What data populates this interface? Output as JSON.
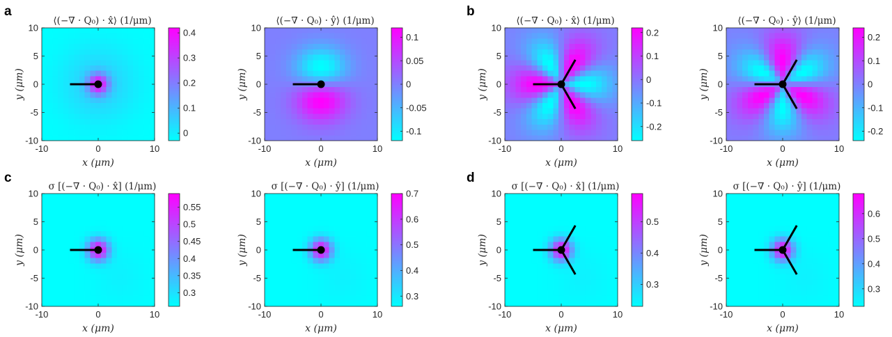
{
  "figure": {
    "panel_letters": [
      "a",
      "b",
      "c",
      "d"
    ],
    "colormap": [
      "#00ffff",
      "#ff00ff"
    ]
  },
  "chart_data": [
    {
      "type": "heatmap",
      "panel": "a",
      "field": "gauss",
      "defect": "plus_half",
      "title": "⟨(−∇ · Q₀) · x̂⟩ (1/μm)",
      "xlabel": "x (μm)",
      "ylabel": "y (μm)",
      "xlim": [
        -10,
        10
      ],
      "ylim": [
        -10,
        10
      ],
      "xticks": [
        -10,
        0,
        10
      ],
      "yticks": [
        -10,
        -5,
        0,
        5,
        10
      ],
      "clim": [
        -0.03,
        0.42
      ],
      "colorbar_ticks": [
        0,
        0.1,
        0.2,
        0.3,
        0.4
      ],
      "colorbar_tick_labels": [
        "0",
        "0.1",
        "0.2",
        "0.3",
        "0.4"
      ]
    },
    {
      "type": "heatmap",
      "panel": "a",
      "field": "dipole",
      "defect": "plus_half",
      "title": "⟨(−∇ · Q₀) · ŷ⟩ (1/μm)",
      "xlabel": "x (μm)",
      "ylabel": "y (μm)",
      "xlim": [
        -10,
        10
      ],
      "ylim": [
        -10,
        10
      ],
      "xticks": [
        -10,
        0,
        10
      ],
      "yticks": [
        -10,
        -5,
        0,
        5,
        10
      ],
      "clim": [
        -0.12,
        0.12
      ],
      "colorbar_ticks": [
        -0.1,
        -0.05,
        0,
        0.05,
        0.1
      ],
      "colorbar_tick_labels": [
        "-0.1",
        "-0.05",
        "0",
        "0.05",
        "0.1"
      ]
    },
    {
      "type": "heatmap",
      "panel": "b",
      "field": "three_lobe_x",
      "defect": "minus_half",
      "title": "⟨(−∇ · Q₀) · x̂⟩ (1/μm)",
      "xlabel": "x (μm)",
      "ylabel": "y (μm)",
      "xlim": [
        -10,
        10
      ],
      "ylim": [
        -10,
        10
      ],
      "xticks": [
        -10,
        0,
        10
      ],
      "yticks": [
        -10,
        -5,
        0,
        5,
        10
      ],
      "clim": [
        -0.26,
        0.22
      ],
      "colorbar_ticks": [
        -0.2,
        -0.1,
        0,
        0.1,
        0.2
      ],
      "colorbar_tick_labels": [
        "-0.2",
        "-0.1",
        "0",
        "0.1",
        "0.2"
      ]
    },
    {
      "type": "heatmap",
      "panel": "b",
      "field": "three_lobe_y",
      "defect": "minus_half",
      "title": "⟨(−∇ · Q₀) · ŷ⟩ (1/μm)",
      "xlabel": "x (μm)",
      "ylabel": "y (μm)",
      "xlim": [
        -10,
        10
      ],
      "ylim": [
        -10,
        10
      ],
      "xticks": [
        -10,
        0,
        10
      ],
      "yticks": [
        -10,
        -5,
        0,
        5,
        10
      ],
      "clim": [
        -0.24,
        0.24
      ],
      "colorbar_ticks": [
        -0.2,
        -0.1,
        0,
        0.1,
        0.2
      ],
      "colorbar_tick_labels": [
        "-0.2",
        "-0.1",
        "0",
        "0.1",
        "0.2"
      ]
    },
    {
      "type": "heatmap",
      "panel": "c",
      "field": "gauss_soft",
      "defect": "plus_half",
      "title": "σ [(−∇ · Q₀) · x̂] (1/μm)",
      "xlabel": "x (μm)",
      "ylabel": "y (μm)",
      "xlim": [
        -10,
        10
      ],
      "ylim": [
        -10,
        10
      ],
      "xticks": [
        -10,
        0,
        10
      ],
      "yticks": [
        -10,
        -5,
        0,
        5,
        10
      ],
      "clim": [
        0.26,
        0.59
      ],
      "colorbar_ticks": [
        0.3,
        0.35,
        0.4,
        0.45,
        0.5,
        0.55
      ],
      "colorbar_tick_labels": [
        "0.3",
        "0.35",
        "0.4",
        "0.45",
        "0.5",
        "0.55"
      ]
    },
    {
      "type": "heatmap",
      "panel": "c",
      "field": "gauss_soft",
      "defect": "plus_half",
      "title": "σ [(−∇ · Q₀) · ŷ] (1/μm)",
      "xlabel": "x (μm)",
      "ylabel": "y (μm)",
      "xlim": [
        -10,
        10
      ],
      "ylim": [
        -10,
        10
      ],
      "xticks": [
        -10,
        0,
        10
      ],
      "yticks": [
        -10,
        -5,
        0,
        5,
        10
      ],
      "clim": [
        0.26,
        0.7
      ],
      "colorbar_ticks": [
        0.3,
        0.4,
        0.5,
        0.6,
        0.7
      ],
      "colorbar_tick_labels": [
        "0.3",
        "0.4",
        "0.5",
        "0.6",
        "0.7"
      ]
    },
    {
      "type": "heatmap",
      "panel": "d",
      "field": "gauss_soft",
      "defect": "minus_half",
      "title": "σ [(−∇ · Q₀) · x̂] (1/μm)",
      "xlabel": "x (μm)",
      "ylabel": "y (μm)",
      "xlim": [
        -10,
        10
      ],
      "ylim": [
        -10,
        10
      ],
      "xticks": [
        -10,
        0,
        10
      ],
      "yticks": [
        -10,
        -5,
        0,
        5,
        10
      ],
      "clim": [
        0.23,
        0.59
      ],
      "colorbar_ticks": [
        0.3,
        0.4,
        0.5
      ],
      "colorbar_tick_labels": [
        "0.3",
        "0.4",
        "0.5"
      ]
    },
    {
      "type": "heatmap",
      "panel": "d",
      "field": "gauss_soft",
      "defect": "minus_half",
      "title": "σ [(−∇ · Q₀) · ŷ] (1/μm)",
      "xlabel": "x (μm)",
      "ylabel": "y (μm)",
      "xlim": [
        -10,
        10
      ],
      "ylim": [
        -10,
        10
      ],
      "xticks": [
        -10,
        0,
        10
      ],
      "yticks": [
        -10,
        -5,
        0,
        5,
        10
      ],
      "clim": [
        0.23,
        0.68
      ],
      "colorbar_ticks": [
        0.3,
        0.4,
        0.5,
        0.6
      ],
      "colorbar_tick_labels": [
        "0.3",
        "0.4",
        "0.5",
        "0.6"
      ]
    }
  ]
}
